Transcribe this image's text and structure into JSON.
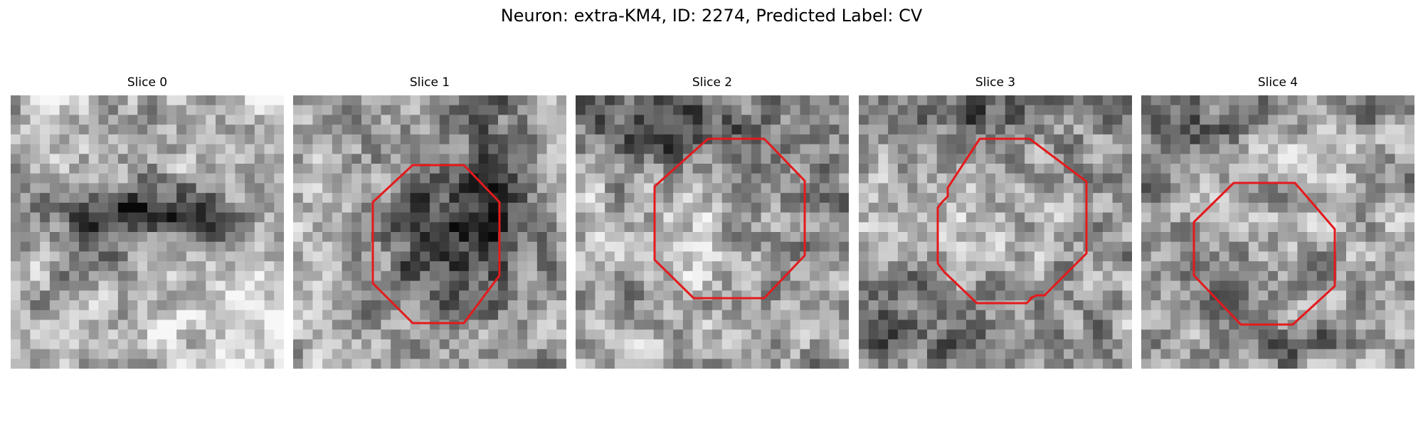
{
  "figure": {
    "suptitle": "Neuron: extra-KM4, ID: 2274, Predicted Label: CV",
    "overlay_color": "#e41a1c"
  },
  "panels": [
    {
      "title": "Slice 0"
    },
    {
      "title": "Slice 1"
    },
    {
      "title": "Slice 2"
    },
    {
      "title": "Slice 3"
    },
    {
      "title": "Slice 4"
    }
  ]
}
